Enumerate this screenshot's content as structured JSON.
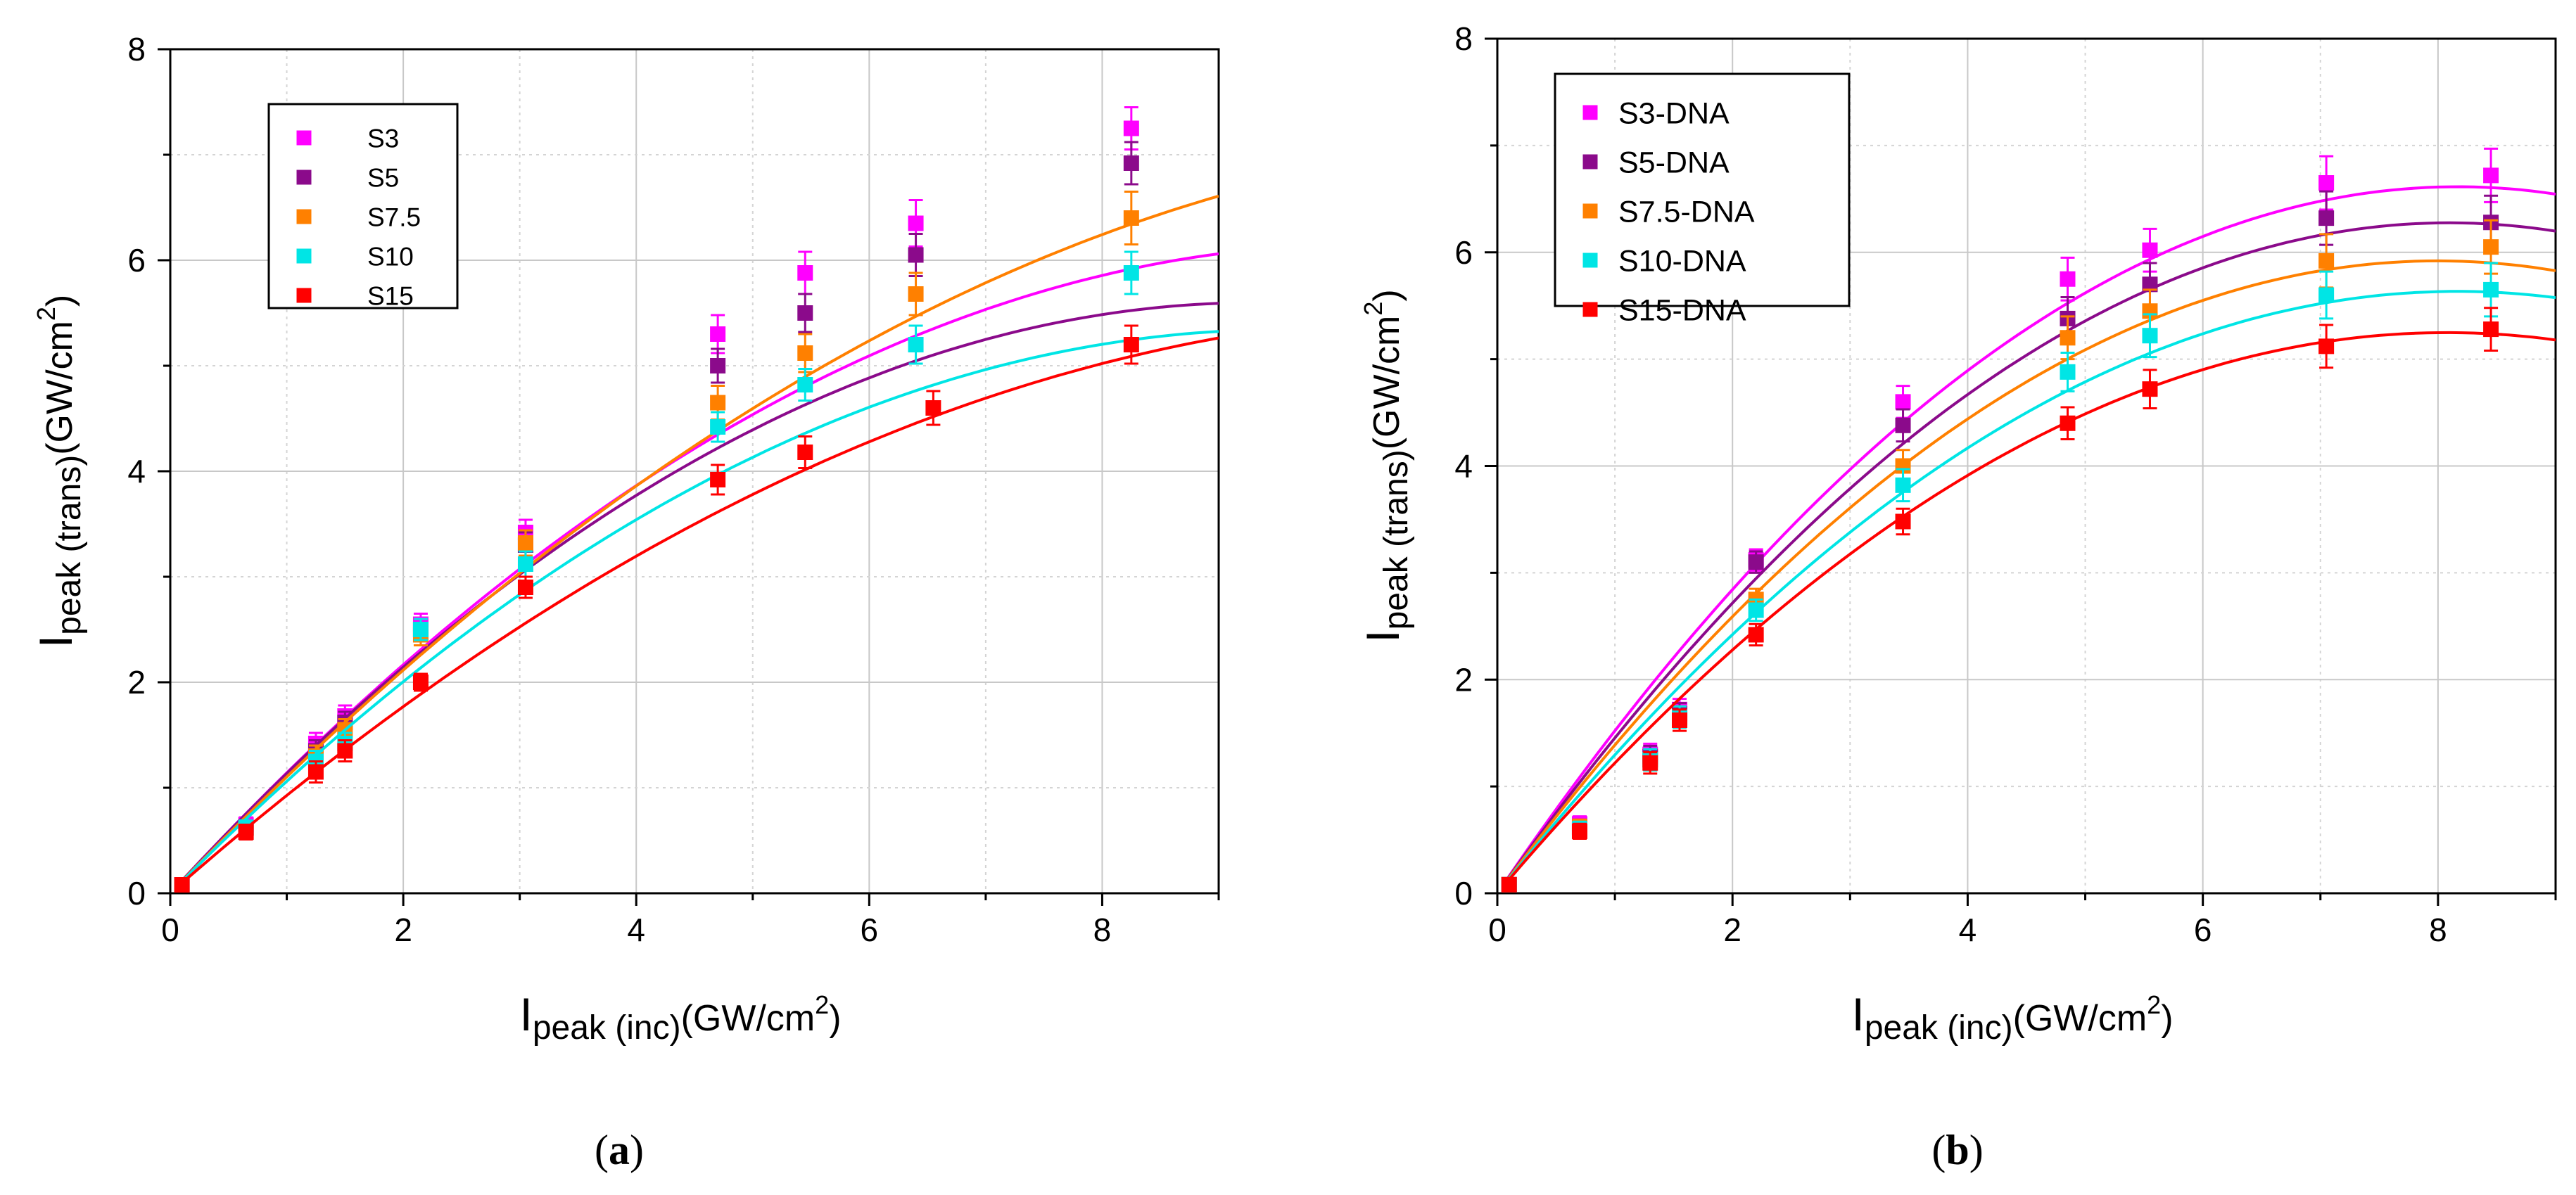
{
  "chart_data": [
    {
      "type": "scatter",
      "panel_label": "a",
      "caption": {
        "open": "(",
        "letter": "a",
        "close": ")"
      },
      "xlabel": {
        "main": "I",
        "sub": "peak (inc)",
        "unit": "(GW/cm",
        "sup": "2",
        "close": ")"
      },
      "ylabel": {
        "main": "I",
        "sub": "peak (trans)",
        "unit": "(GW/cm",
        "sup": "2",
        "close": ")"
      },
      "xlim": [
        0,
        9
      ],
      "ylim": [
        0,
        8
      ],
      "xticks": [
        0,
        2,
        4,
        6,
        8
      ],
      "yticks": [
        0,
        2,
        4,
        6,
        8
      ],
      "grid": true,
      "legend_position": "top-left",
      "series": [
        {
          "name": "S3",
          "color": "#ff00ff",
          "points": [
            [
              0.1,
              0.08
            ],
            [
              0.65,
              0.65
            ],
            [
              1.25,
              1.42
            ],
            [
              1.5,
              1.68
            ],
            [
              2.15,
              2.55
            ],
            [
              3.05,
              3.42
            ],
            [
              4.7,
              5.3
            ],
            [
              5.45,
              5.88
            ],
            [
              6.4,
              6.35
            ],
            [
              8.25,
              7.25
            ]
          ],
          "errors": [
            0.05,
            0.07,
            0.1,
            0.1,
            0.1,
            0.12,
            0.18,
            0.2,
            0.22,
            0.2
          ],
          "fit": {
            "a": 1.2,
            "b": -0.0585
          }
        },
        {
          "name": "S5",
          "color": "#8b0a8b",
          "points": [
            [
              0.1,
              0.08
            ],
            [
              0.65,
              0.62
            ],
            [
              1.25,
              1.35
            ],
            [
              1.5,
              1.62
            ],
            [
              2.15,
              2.5
            ],
            [
              3.05,
              3.3
            ],
            [
              4.7,
              5.0
            ],
            [
              5.45,
              5.5
            ],
            [
              6.4,
              6.05
            ],
            [
              8.25,
              6.92
            ]
          ],
          "errors": [
            0.05,
            0.07,
            0.1,
            0.1,
            0.1,
            0.12,
            0.16,
            0.18,
            0.2,
            0.2
          ],
          "fit": {
            "a": 1.2,
            "b": -0.0643
          }
        },
        {
          "name": "S7.5",
          "color": "#ff8000",
          "points": [
            [
              0.1,
              0.08
            ],
            [
              0.65,
              0.62
            ],
            [
              1.25,
              1.3
            ],
            [
              1.5,
              1.55
            ],
            [
              2.15,
              2.45
            ],
            [
              3.05,
              3.32
            ],
            [
              4.7,
              4.65
            ],
            [
              5.45,
              5.12
            ],
            [
              6.4,
              5.68
            ],
            [
              8.25,
              6.4
            ]
          ],
          "errors": [
            0.05,
            0.07,
            0.1,
            0.1,
            0.1,
            0.12,
            0.16,
            0.18,
            0.2,
            0.25
          ],
          "fit": {
            "a": 1.15,
            "b": -0.0462
          }
        },
        {
          "name": "S10",
          "color": "#00e5e5",
          "points": [
            [
              0.1,
              0.08
            ],
            [
              0.65,
              0.62
            ],
            [
              1.25,
              1.25
            ],
            [
              1.5,
              1.42
            ],
            [
              2.15,
              2.5
            ],
            [
              3.05,
              3.12
            ],
            [
              4.7,
              4.42
            ],
            [
              5.45,
              4.82
            ],
            [
              6.4,
              5.2
            ],
            [
              8.25,
              5.88
            ]
          ],
          "errors": [
            0.05,
            0.07,
            0.1,
            0.1,
            0.1,
            0.12,
            0.14,
            0.15,
            0.18,
            0.2
          ],
          "fit": {
            "a": 1.12,
            "b": -0.0587
          }
        },
        {
          "name": "S15",
          "color": "#ff0000",
          "points": [
            [
              0.1,
              0.08
            ],
            [
              0.65,
              0.58
            ],
            [
              1.25,
              1.15
            ],
            [
              1.5,
              1.35
            ],
            [
              2.15,
              2.0
            ],
            [
              3.05,
              2.9
            ],
            [
              4.7,
              3.92
            ],
            [
              5.45,
              4.18
            ],
            [
              6.55,
              4.6
            ],
            [
              8.25,
              5.2
            ]
          ],
          "errors": [
            0.05,
            0.07,
            0.1,
            0.1,
            0.08,
            0.1,
            0.14,
            0.15,
            0.16,
            0.18
          ],
          "fit": {
            "a": 0.97,
            "b": -0.0428
          }
        }
      ]
    },
    {
      "type": "scatter",
      "panel_label": "b",
      "caption": {
        "open": "(",
        "letter": "b",
        "close": ")"
      },
      "xlabel": {
        "main": "I",
        "sub": "peak (inc)",
        "unit": "(GW/cm",
        "sup": "2",
        "close": ")"
      },
      "ylabel": {
        "main": "I",
        "sub": "peak (trans)",
        "unit": "(GW/cm",
        "sup": "2",
        "close": ")"
      },
      "xlim": [
        0,
        9
      ],
      "ylim": [
        0,
        8
      ],
      "xticks": [
        0,
        2,
        4,
        6,
        8
      ],
      "yticks": [
        0,
        2,
        4,
        6,
        8
      ],
      "grid": true,
      "legend_position": "top-left",
      "series": [
        {
          "name": "S3-DNA",
          "color": "#ff00ff",
          "points": [
            [
              0.1,
              0.08
            ],
            [
              0.7,
              0.65
            ],
            [
              1.3,
              1.3
            ],
            [
              1.55,
              1.72
            ],
            [
              2.2,
              3.12
            ],
            [
              3.45,
              4.6
            ],
            [
              4.85,
              5.75
            ],
            [
              5.55,
              6.02
            ],
            [
              7.05,
              6.65
            ],
            [
              8.45,
              6.72
            ]
          ],
          "errors": [
            0.05,
            0.07,
            0.1,
            0.1,
            0.1,
            0.15,
            0.2,
            0.2,
            0.25,
            0.25
          ],
          "fit": {
            "a": 1.62,
            "b": -0.0992
          }
        },
        {
          "name": "S5-DNA",
          "color": "#8b0a8b",
          "points": [
            [
              0.1,
              0.08
            ],
            [
              0.7,
              0.62
            ],
            [
              1.3,
              1.28
            ],
            [
              1.55,
              1.68
            ],
            [
              2.2,
              3.1
            ],
            [
              3.45,
              4.38
            ],
            [
              4.85,
              5.38
            ],
            [
              5.55,
              5.7
            ],
            [
              7.05,
              6.32
            ],
            [
              8.45,
              6.28
            ]
          ],
          "errors": [
            0.05,
            0.07,
            0.1,
            0.1,
            0.1,
            0.15,
            0.2,
            0.2,
            0.25,
            0.25
          ],
          "fit": {
            "a": 1.55,
            "b": -0.0957
          }
        },
        {
          "name": "S7.5-DNA",
          "color": "#ff8000",
          "points": [
            [
              0.1,
              0.08
            ],
            [
              0.7,
              0.62
            ],
            [
              1.3,
              1.25
            ],
            [
              1.55,
              1.65
            ],
            [
              2.2,
              2.75
            ],
            [
              3.45,
              4.0
            ],
            [
              4.85,
              5.2
            ],
            [
              5.55,
              5.45
            ],
            [
              7.05,
              5.92
            ],
            [
              8.45,
              6.05
            ]
          ],
          "errors": [
            0.05,
            0.07,
            0.1,
            0.1,
            0.1,
            0.15,
            0.2,
            0.2,
            0.25,
            0.25
          ],
          "fit": {
            "a": 1.48,
            "b": -0.0925
          }
        },
        {
          "name": "S10-DNA",
          "color": "#00e5e5",
          "points": [
            [
              0.1,
              0.08
            ],
            [
              0.7,
              0.6
            ],
            [
              1.3,
              1.25
            ],
            [
              1.55,
              1.65
            ],
            [
              2.2,
              2.65
            ],
            [
              3.45,
              3.82
            ],
            [
              4.85,
              4.88
            ],
            [
              5.55,
              5.22
            ],
            [
              7.05,
              5.6
            ],
            [
              8.45,
              5.65
            ]
          ],
          "errors": [
            0.05,
            0.07,
            0.1,
            0.1,
            0.1,
            0.15,
            0.18,
            0.2,
            0.22,
            0.25
          ],
          "fit": {
            "a": 1.38,
            "b": -0.0845
          }
        },
        {
          "name": "S15-DNA",
          "color": "#ff0000",
          "points": [
            [
              0.1,
              0.08
            ],
            [
              0.7,
              0.58
            ],
            [
              1.3,
              1.22
            ],
            [
              1.55,
              1.62
            ],
            [
              2.2,
              2.42
            ],
            [
              3.45,
              3.48
            ],
            [
              4.85,
              4.4
            ],
            [
              5.55,
              4.72
            ],
            [
              7.05,
              5.12
            ],
            [
              8.45,
              5.28
            ]
          ],
          "errors": [
            0.05,
            0.07,
            0.1,
            0.1,
            0.1,
            0.12,
            0.15,
            0.18,
            0.2,
            0.2
          ],
          "fit": {
            "a": 1.3,
            "b": -0.0805
          }
        }
      ]
    }
  ]
}
